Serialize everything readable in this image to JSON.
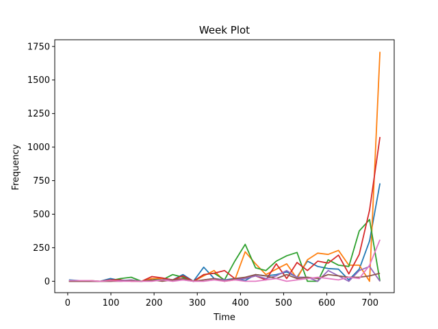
{
  "chart_data": {
    "type": "line",
    "title": "Week Plot",
    "xlabel": "Time",
    "ylabel": "Frequency",
    "xlim": [
      -30,
      756
    ],
    "ylim": [
      -85,
      1800
    ],
    "xticks": [
      0,
      100,
      200,
      300,
      400,
      500,
      600,
      700
    ],
    "yticks": [
      0,
      250,
      500,
      750,
      1000,
      1250,
      1500,
      1750
    ],
    "grid": false,
    "legend": "none",
    "x": [
      3,
      27,
      51,
      75,
      99,
      123,
      147,
      171,
      195,
      219,
      243,
      267,
      291,
      315,
      339,
      363,
      387,
      411,
      435,
      459,
      483,
      507,
      531,
      555,
      579,
      603,
      627,
      651,
      675,
      699,
      723
    ],
    "series": [
      {
        "color": "#1f77b4",
        "values": [
          10,
          5,
          5,
          0,
          20,
          5,
          5,
          0,
          10,
          20,
          10,
          50,
          0,
          105,
          20,
          10,
          20,
          5,
          50,
          40,
          50,
          70,
          30,
          150,
          110,
          95,
          90,
          10,
          90,
          300,
          730
        ]
      },
      {
        "color": "#ff7f0e",
        "values": [
          0,
          0,
          5,
          0,
          0,
          5,
          5,
          0,
          20,
          20,
          10,
          20,
          0,
          40,
          80,
          0,
          10,
          220,
          130,
          50,
          90,
          130,
          20,
          160,
          210,
          200,
          230,
          120,
          120,
          0,
          1710
        ]
      },
      {
        "color": "#2ca02c",
        "values": [
          0,
          0,
          0,
          0,
          5,
          20,
          30,
          0,
          10,
          10,
          50,
          30,
          0,
          50,
          60,
          10,
          150,
          275,
          100,
          80,
          150,
          190,
          215,
          0,
          0,
          160,
          120,
          110,
          375,
          460,
          0
        ]
      },
      {
        "color": "#d62728",
        "values": [
          0,
          0,
          0,
          0,
          10,
          10,
          0,
          0,
          35,
          25,
          10,
          40,
          0,
          50,
          60,
          80,
          20,
          20,
          40,
          10,
          130,
          20,
          140,
          80,
          150,
          135,
          195,
          55,
          200,
          530,
          1075
        ]
      },
      {
        "color": "#9467bd",
        "values": [
          0,
          0,
          0,
          0,
          0,
          5,
          10,
          0,
          5,
          10,
          10,
          10,
          0,
          10,
          20,
          10,
          10,
          20,
          40,
          20,
          40,
          80,
          30,
          30,
          0,
          80,
          40,
          0,
          80,
          110,
          0
        ]
      },
      {
        "color": "#8c564b",
        "values": [
          0,
          0,
          0,
          0,
          0,
          0,
          5,
          0,
          10,
          0,
          10,
          20,
          0,
          10,
          20,
          0,
          20,
          30,
          50,
          40,
          20,
          50,
          20,
          30,
          20,
          50,
          40,
          30,
          30,
          40,
          60
        ]
      },
      {
        "color": "#e377c2",
        "values": [
          5,
          5,
          5,
          0,
          5,
          0,
          0,
          0,
          0,
          10,
          0,
          10,
          0,
          0,
          10,
          0,
          10,
          0,
          0,
          10,
          20,
          0,
          10,
          20,
          30,
          20,
          10,
          30,
          20,
          120,
          310
        ]
      }
    ]
  }
}
